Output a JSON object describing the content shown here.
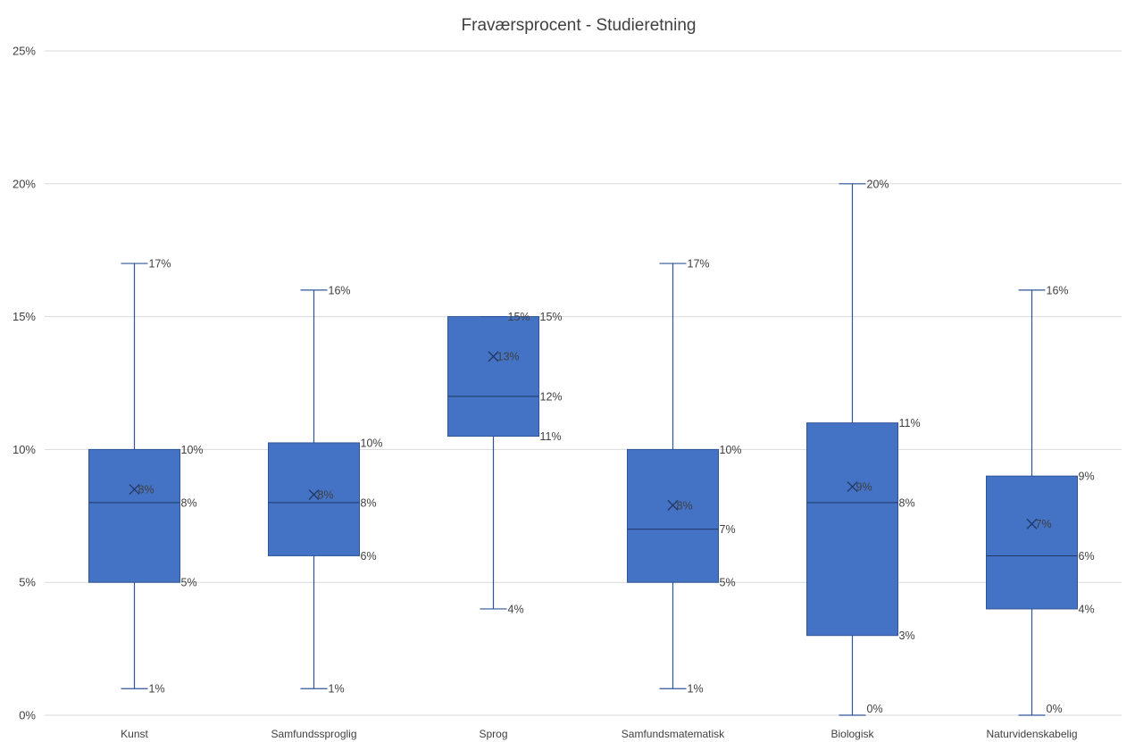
{
  "chart_data": {
    "type": "box",
    "title": "Fraværsprocent - Studieretning",
    "ylim": [
      0,
      25
    ],
    "yticks": [
      0,
      5,
      10,
      15,
      20,
      25
    ],
    "ytick_labels": [
      "0%",
      "5%",
      "10%",
      "15%",
      "20%",
      "25%"
    ],
    "grid": true,
    "colors": {
      "box": "#4472c4",
      "edge": "#2f5597",
      "median": "#203864",
      "grid": "#d9d9d9",
      "text": "#404040"
    },
    "categories": [
      "Kunst",
      "Samfundssproglig",
      "Sprog",
      "Samfundsmatematisk",
      "Biologisk",
      "Naturvidenskabelig"
    ],
    "boxes": [
      {
        "category": "Kunst",
        "min": 1,
        "q1": 5,
        "median": 8,
        "q3": 10,
        "max": 17,
        "mean": 8.5,
        "labels": {
          "max": "17%",
          "q3": "10%",
          "median": "8%",
          "q1": "5%",
          "min": "1%",
          "mean": "8%"
        }
      },
      {
        "category": "Samfundssproglig",
        "min": 1,
        "q1": 6,
        "median": 8,
        "q3": 10.25,
        "max": 16,
        "mean": 8.3,
        "labels": {
          "max": "16%",
          "q3": "10%",
          "median": "8%",
          "q1": "6%",
          "min": "1%",
          "mean": "8%"
        }
      },
      {
        "category": "Sprog",
        "min": 4,
        "q1": 10.5,
        "median": 12,
        "q3": 15,
        "max": 15,
        "mean": 13.5,
        "labels": {
          "max": "15%",
          "q3": "15%",
          "median": "12%",
          "q1": "11%",
          "min": "4%",
          "mean": "13%"
        }
      },
      {
        "category": "Samfundsmatematisk",
        "min": 1,
        "q1": 5,
        "median": 7,
        "q3": 10,
        "max": 17,
        "mean": 7.9,
        "labels": {
          "max": "17%",
          "q3": "10%",
          "median": "7%",
          "q1": "5%",
          "min": "1%",
          "mean": "8%"
        }
      },
      {
        "category": "Biologisk",
        "min": 0,
        "q1": 3,
        "median": 8,
        "q3": 11,
        "max": 20,
        "mean": 8.6,
        "labels": {
          "max": "20%",
          "q3": "11%",
          "median": "8%",
          "q1": "3%",
          "min": "0%",
          "mean": "9%"
        }
      },
      {
        "category": "Naturvidenskabelig",
        "min": 0,
        "q1": 4,
        "median": 6,
        "q3": 9,
        "max": 16,
        "mean": 7.2,
        "labels": {
          "max": "16%",
          "q3": "9%",
          "median": "6%",
          "q1": "4%",
          "min": "0%",
          "mean": "7%"
        }
      }
    ]
  }
}
